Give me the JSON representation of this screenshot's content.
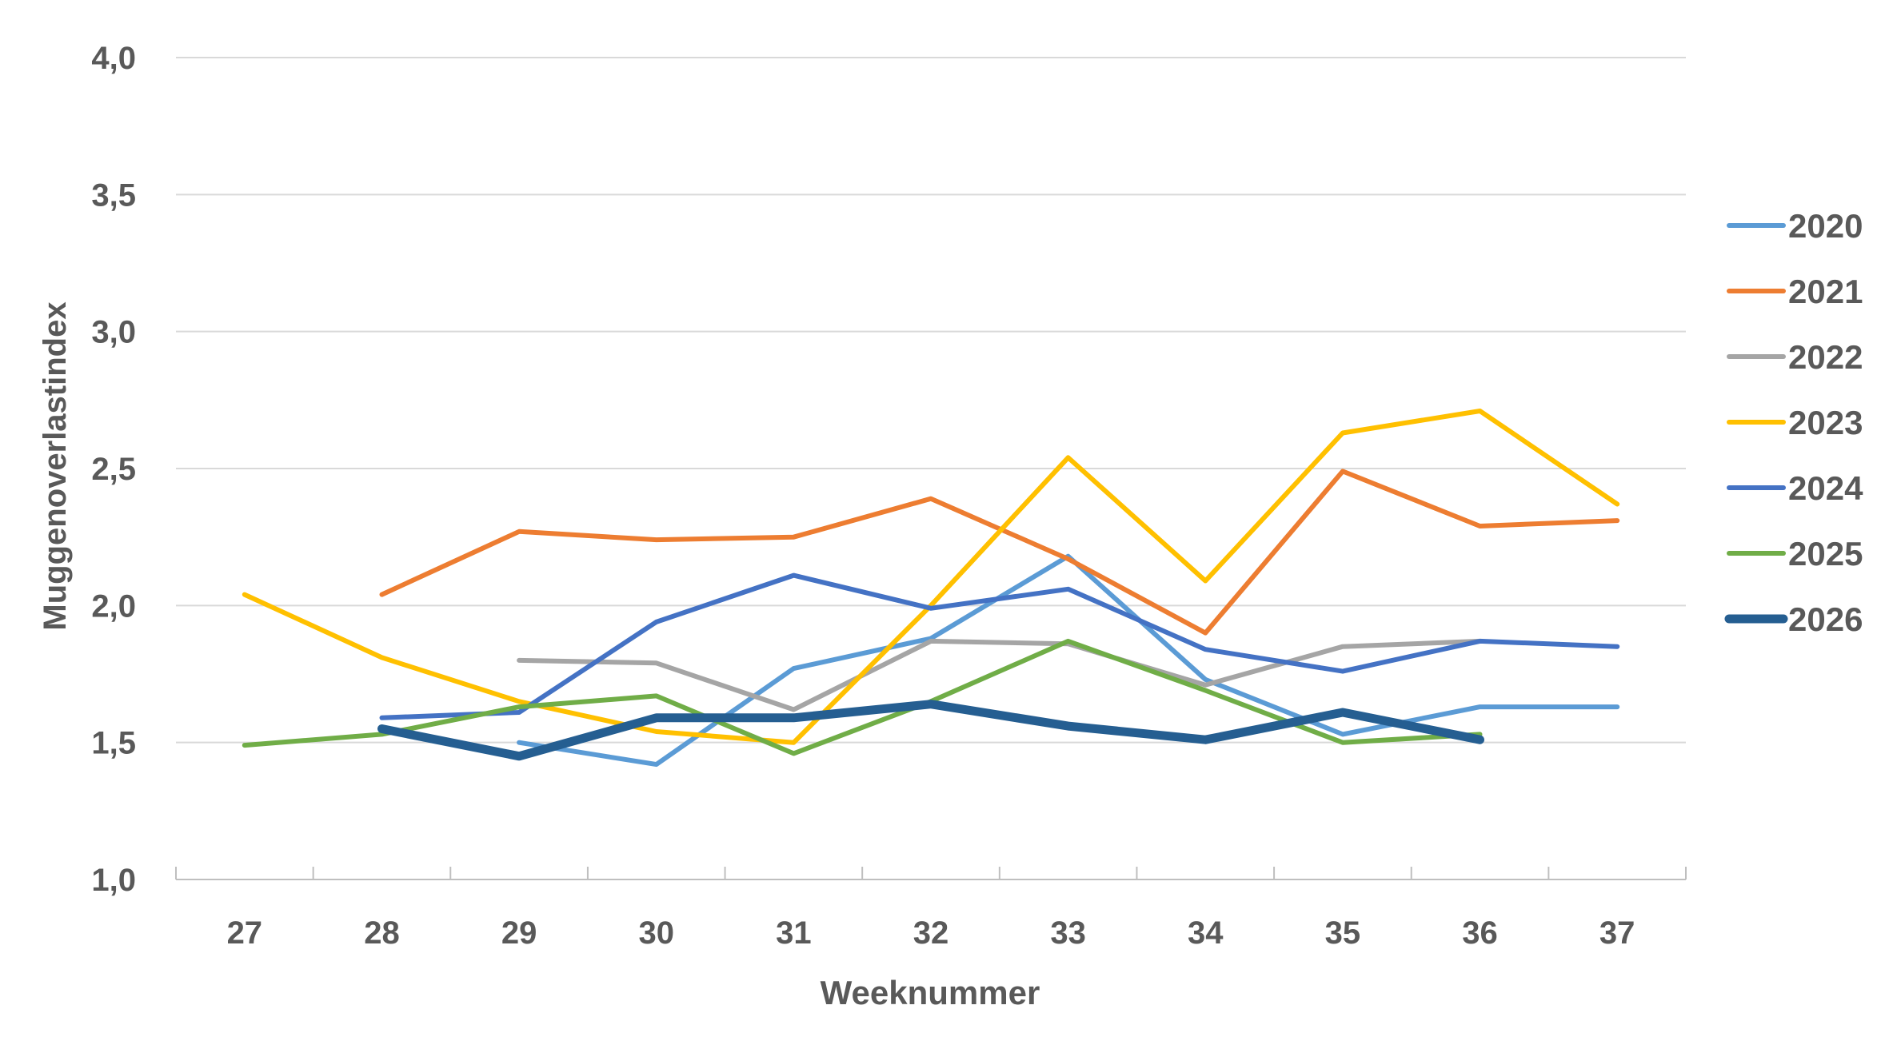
{
  "chart_data": {
    "type": "line",
    "title": "",
    "xlabel": "Weeknummer",
    "ylabel": "Muggenoverlastindex",
    "categories": [
      "27",
      "28",
      "29",
      "30",
      "31",
      "32",
      "33",
      "34",
      "35",
      "36",
      "37"
    ],
    "ylim": [
      1.0,
      4.0
    ],
    "yticks": [
      "1,0",
      "1,5",
      "2,0",
      "2,5",
      "3,0",
      "3,5",
      "4,0"
    ],
    "ytick_values": [
      1.0,
      1.5,
      2.0,
      2.5,
      3.0,
      3.5,
      4.0
    ],
    "grid": "horizontal",
    "legend_position": "right",
    "series": [
      {
        "name": "2020",
        "color": "#5B9BD5",
        "emphasis": false,
        "values": [
          null,
          null,
          1.5,
          1.42,
          1.77,
          1.88,
          2.18,
          1.73,
          1.53,
          1.63,
          1.63
        ]
      },
      {
        "name": "2021",
        "color": "#ED7D31",
        "emphasis": false,
        "values": [
          null,
          2.04,
          2.27,
          2.24,
          2.25,
          2.39,
          2.17,
          1.9,
          2.49,
          2.29,
          2.31
        ]
      },
      {
        "name": "2022",
        "color": "#A5A5A5",
        "emphasis": false,
        "values": [
          null,
          null,
          1.8,
          1.79,
          1.62,
          1.87,
          1.86,
          1.71,
          1.85,
          1.87,
          null
        ]
      },
      {
        "name": "2023",
        "color": "#FFC000",
        "emphasis": false,
        "values": [
          2.04,
          1.81,
          1.65,
          1.54,
          1.5,
          2.0,
          2.54,
          2.09,
          2.63,
          2.71,
          2.37
        ]
      },
      {
        "name": "2024",
        "color": "#4472C4",
        "emphasis": false,
        "values": [
          null,
          1.59,
          1.61,
          1.94,
          2.11,
          1.99,
          2.06,
          1.84,
          1.76,
          1.87,
          1.85
        ]
      },
      {
        "name": "2025",
        "color": "#70AD47",
        "emphasis": false,
        "values": [
          1.49,
          1.53,
          1.63,
          1.67,
          1.46,
          1.65,
          1.87,
          1.69,
          1.5,
          1.53,
          null
        ]
      },
      {
        "name": "2026",
        "color": "#255E91",
        "emphasis": true,
        "values": [
          null,
          1.55,
          1.45,
          1.59,
          1.59,
          1.64,
          1.56,
          1.51,
          1.61,
          1.51,
          null
        ]
      }
    ]
  }
}
